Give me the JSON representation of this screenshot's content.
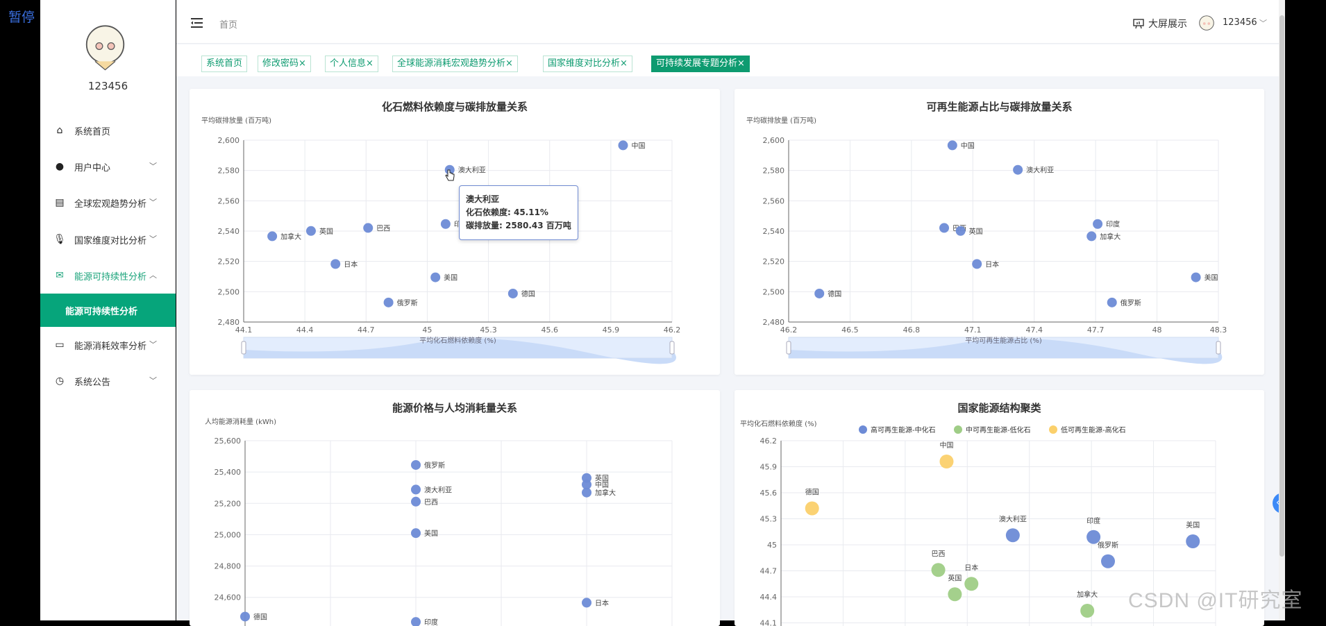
{
  "overlay": {
    "pause": "暂停",
    "watermark": "CSDN @IT研究室"
  },
  "sidebar": {
    "username": "123456",
    "items": [
      {
        "label": "系统首页",
        "icon": "home-icon",
        "chev": ""
      },
      {
        "label": "用户中心",
        "icon": "user-icon",
        "chev": "﹀"
      },
      {
        "label": "全球宏观趋势分析",
        "icon": "clipboard-icon",
        "chev": "﹀"
      },
      {
        "label": "国家维度对比分析",
        "icon": "microphone-icon",
        "chev": "﹀"
      },
      {
        "label": "能源可持续性分析",
        "icon": "mail-icon",
        "chev": "︿"
      },
      {
        "label": "能源消耗效率分析",
        "icon": "id-card-icon",
        "chev": "﹀"
      },
      {
        "label": "系统公告",
        "icon": "clock-icon",
        "chev": "﹀"
      }
    ],
    "active_sub": "能源可持续性分析"
  },
  "header": {
    "breadcrumb": "首页",
    "bigscreen": "大屏展示",
    "user": "123456"
  },
  "tags": [
    {
      "label": "系统首页",
      "close": ""
    },
    {
      "label": "修改密码",
      "close": "×"
    },
    {
      "label": "个人信息",
      "close": "×"
    },
    {
      "label": "全球能源消耗宏观趋势分析",
      "close": "×"
    },
    {
      "label": "国家维度对比分析",
      "close": "×"
    },
    {
      "label": "可持续发展专题分析",
      "close": "×",
      "active": true
    }
  ],
  "accent": "#0e9b70",
  "tooltip": {
    "name": "澳大利亚",
    "line1": "化石依赖度: 45.11%",
    "line2": "碳排放量: 2580.43 百万吨"
  },
  "chart_data": [
    {
      "type": "scatter",
      "title": "化石燃料依赖度与碳排放量关系",
      "ylabel": "平均碳排放量 (百万吨)",
      "xlabel": "平均化石燃料依赖度 (%)",
      "xlim": [
        44.1,
        46.2
      ],
      "xticks": [
        44.1,
        44.4,
        44.7,
        45,
        45.3,
        45.6,
        45.9,
        46.2
      ],
      "ylim": [
        2480,
        2600
      ],
      "yticks": [
        2480,
        2500,
        2520,
        2540,
        2560,
        2580,
        2600
      ],
      "grid": true,
      "datazoom": true,
      "color": "#6d8bd6",
      "points": [
        {
          "name": "中国",
          "x": 45.96,
          "y": 2596.6
        },
        {
          "name": "澳大利亚",
          "x": 45.11,
          "y": 2580.43
        },
        {
          "name": "印度",
          "x": 45.09,
          "y": 2544.7
        },
        {
          "name": "巴西",
          "x": 44.71,
          "y": 2542.1
        },
        {
          "name": "英国",
          "x": 44.43,
          "y": 2540.1
        },
        {
          "name": "加拿大",
          "x": 44.24,
          "y": 2536.6
        },
        {
          "name": "日本",
          "x": 44.55,
          "y": 2518.3
        },
        {
          "name": "美国",
          "x": 45.04,
          "y": 2509.5
        },
        {
          "name": "德国",
          "x": 45.42,
          "y": 2498.8
        },
        {
          "name": "俄罗斯",
          "x": 44.81,
          "y": 2492.9
        }
      ]
    },
    {
      "type": "scatter",
      "title": "可再生能源占比与碳排放量关系",
      "ylabel": "平均碳排放量 (百万吨)",
      "xlabel": "平均可再生能源占比 (%)",
      "xlim": [
        46.2,
        48.3
      ],
      "xticks": [
        46.2,
        46.5,
        46.8,
        47.1,
        47.4,
        47.7,
        48,
        48.3
      ],
      "ylim": [
        2480,
        2600
      ],
      "yticks": [
        2480,
        2500,
        2520,
        2540,
        2560,
        2580,
        2600
      ],
      "grid": true,
      "datazoom": true,
      "color": "#6d8bd6",
      "points": [
        {
          "name": "中国",
          "x": 47.0,
          "y": 2596.6
        },
        {
          "name": "澳大利亚",
          "x": 47.32,
          "y": 2580.43
        },
        {
          "name": "印度",
          "x": 47.71,
          "y": 2544.7
        },
        {
          "name": "加拿大",
          "x": 47.68,
          "y": 2536.6
        },
        {
          "name": "巴西",
          "x": 46.96,
          "y": 2542.1
        },
        {
          "name": "英国",
          "x": 47.04,
          "y": 2540.1
        },
        {
          "name": "日本",
          "x": 47.12,
          "y": 2518.3
        },
        {
          "name": "美国",
          "x": 48.19,
          "y": 2509.5
        },
        {
          "name": "德国",
          "x": 46.35,
          "y": 2498.8
        },
        {
          "name": "俄罗斯",
          "x": 47.78,
          "y": 2492.9
        }
      ]
    },
    {
      "type": "scatter",
      "title": "能源价格与人均消耗量关系",
      "ylabel": "人均能源消耗量 (kWh)",
      "xlim": [
        0,
        5
      ],
      "xticks": [],
      "ylim": [
        24200,
        25600
      ],
      "yticks": [
        24400,
        24600,
        24800,
        25000,
        25200,
        25400,
        25600
      ],
      "grid": true,
      "color": "#6d8bd6",
      "points": [
        {
          "name": "俄罗斯",
          "x": 2,
          "y": 25445
        },
        {
          "name": "澳大利亚",
          "x": 2,
          "y": 25288
        },
        {
          "name": "巴西",
          "x": 2,
          "y": 25211
        },
        {
          "name": "美国",
          "x": 2,
          "y": 25010
        },
        {
          "name": "印度",
          "x": 2,
          "y": 24443
        },
        {
          "name": "英国",
          "x": 4,
          "y": 25362
        },
        {
          "name": "中国",
          "x": 4,
          "y": 25320
        },
        {
          "name": "加拿大",
          "x": 4,
          "y": 25269
        },
        {
          "name": "日本",
          "x": 4,
          "y": 24566
        },
        {
          "name": "德国",
          "x": 0,
          "y": 24477
        }
      ]
    },
    {
      "type": "scatter",
      "title": "国家能源结构聚类",
      "ylabel": "平均化石燃料依赖度 (%)",
      "xlim": [
        46.2,
        48.3
      ],
      "xticks": [],
      "ylim": [
        43.8,
        46.2
      ],
      "yticks": [
        44.1,
        44.4,
        44.7,
        45,
        45.3,
        45.6,
        45.9,
        46.2
      ],
      "grid": true,
      "legend": "top",
      "series": [
        {
          "name": "高可再生能源-中化石",
          "color": "#6d8bd6",
          "points": [
            {
              "name": "澳大利亚",
              "x": 47.32,
              "y": 45.11
            },
            {
              "name": "印度",
              "x": 47.71,
              "y": 45.09
            },
            {
              "name": "俄罗斯",
              "x": 47.78,
              "y": 44.81
            },
            {
              "name": "美国",
              "x": 48.19,
              "y": 45.04
            }
          ]
        },
        {
          "name": "中可再生能源-低化石",
          "color": "#9fcd86",
          "points": [
            {
              "name": "巴西",
              "x": 46.96,
              "y": 44.71
            },
            {
              "name": "日本",
              "x": 47.12,
              "y": 44.55
            },
            {
              "name": "英国",
              "x": 47.04,
              "y": 44.43
            },
            {
              "name": "加拿大",
              "x": 47.68,
              "y": 44.24
            }
          ]
        },
        {
          "name": "低可再生能源-高化石",
          "color": "#fbd06b",
          "points": [
            {
              "name": "中国",
              "x": 47.0,
              "y": 45.96
            },
            {
              "name": "德国",
              "x": 46.35,
              "y": 45.42
            }
          ]
        }
      ]
    }
  ]
}
